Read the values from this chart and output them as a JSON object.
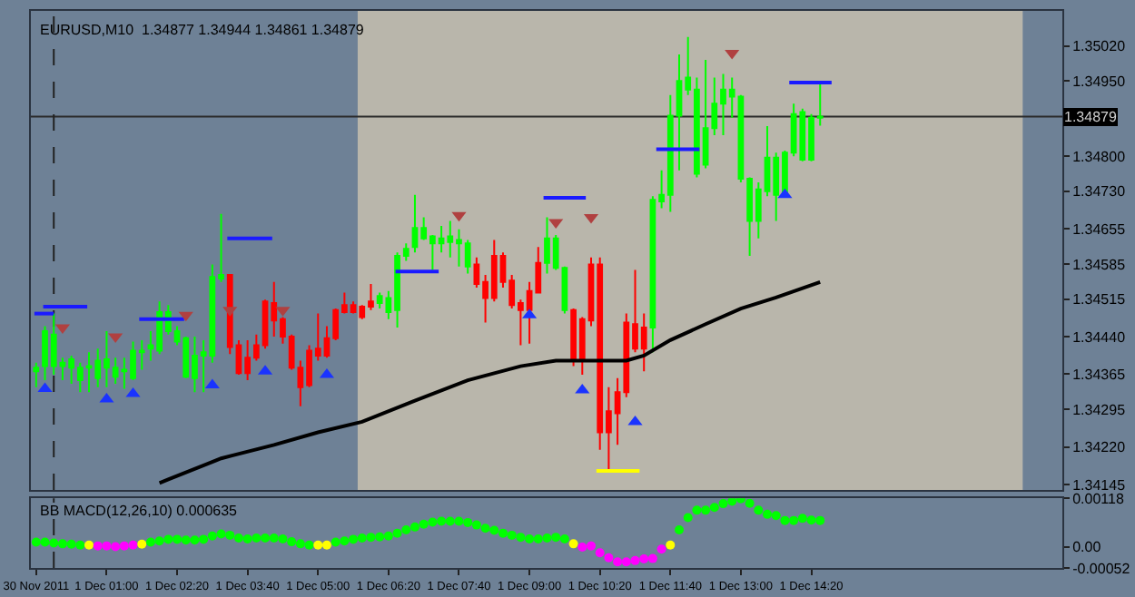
{
  "chart_data": [
    {
      "type": "candlestick",
      "title": "EURUSD,M10  1.34877 1.34944 1.34861 1.34879",
      "x": [
        "2011-11-30T23:40",
        "2011-11-30T23:50",
        "2011-12-01T00:00",
        "2011-12-01T00:10",
        "2011-12-01T00:20",
        "2011-12-01T00:30",
        "2011-12-01T00:40",
        "2011-12-01T00:50",
        "2011-12-01T01:00",
        "2011-12-01T01:10",
        "2011-12-01T01:20",
        "2011-12-01T01:30",
        "2011-12-01T01:40",
        "2011-12-01T01:50",
        "2011-12-01T02:00",
        "2011-12-01T02:10",
        "2011-12-01T02:20",
        "2011-12-01T02:30",
        "2011-12-01T02:40",
        "2011-12-01T02:50",
        "2011-12-01T03:00",
        "2011-12-01T03:10",
        "2011-12-01T03:20",
        "2011-12-01T03:30",
        "2011-12-01T03:40",
        "2011-12-01T03:50",
        "2011-12-01T04:00",
        "2011-12-01T04:10",
        "2011-12-01T04:20",
        "2011-12-01T04:30",
        "2011-12-01T04:40",
        "2011-12-01T04:50",
        "2011-12-01T05:00",
        "2011-12-01T05:10",
        "2011-12-01T05:20",
        "2011-12-01T05:30",
        "2011-12-01T05:40",
        "2011-12-01T05:50",
        "2011-12-01T06:00",
        "2011-12-01T06:10",
        "2011-12-01T06:20",
        "2011-12-01T06:30",
        "2011-12-01T06:40",
        "2011-12-01T06:50",
        "2011-12-01T07:00",
        "2011-12-01T07:10",
        "2011-12-01T07:20",
        "2011-12-01T07:30",
        "2011-12-01T07:40",
        "2011-12-01T07:50",
        "2011-12-01T08:00",
        "2011-12-01T08:10",
        "2011-12-01T08:20",
        "2011-12-01T08:30",
        "2011-12-01T08:40",
        "2011-12-01T08:50",
        "2011-12-01T09:00",
        "2011-12-01T09:10",
        "2011-12-01T09:20",
        "2011-12-01T09:30",
        "2011-12-01T09:40",
        "2011-12-01T09:50",
        "2011-12-01T10:00",
        "2011-12-01T10:10",
        "2011-12-01T10:20",
        "2011-12-01T10:30",
        "2011-12-01T10:40",
        "2011-12-01T10:50",
        "2011-12-01T11:00",
        "2011-12-01T11:10",
        "2011-12-01T11:20",
        "2011-12-01T11:30",
        "2011-12-01T11:40",
        "2011-12-01T11:50",
        "2011-12-01T12:00",
        "2011-12-01T12:10",
        "2011-12-01T12:20",
        "2011-12-01T12:30",
        "2011-12-01T12:40",
        "2011-12-01T12:50",
        "2011-12-01T13:00",
        "2011-12-01T13:10",
        "2011-12-01T13:20",
        "2011-12-01T13:30",
        "2011-12-01T13:40",
        "2011-12-01T13:50",
        "2011-12-01T14:00",
        "2011-12-01T14:10",
        "2011-12-01T14:20",
        "2011-12-01T14:30"
      ],
      "ohlc": [
        [
          1.34371,
          1.34388,
          1.34339,
          1.34378
        ],
        [
          1.34381,
          1.34461,
          1.34353,
          1.34451
        ],
        [
          1.34381,
          1.34486,
          1.34364,
          1.34444
        ],
        [
          1.34381,
          1.34398,
          1.34353,
          1.34388
        ],
        [
          1.34378,
          1.34402,
          1.34346,
          1.34395
        ],
        [
          1.34353,
          1.34388,
          1.34329,
          1.34378
        ],
        [
          1.34378,
          1.34409,
          1.34329,
          1.34381
        ],
        [
          1.34357,
          1.34416,
          1.34339,
          1.34392
        ],
        [
          1.34378,
          1.34451,
          1.34339,
          1.34395
        ],
        [
          1.3436,
          1.34398,
          1.34346,
          1.34378
        ],
        [
          1.34371,
          1.34398,
          1.34336,
          1.34374
        ],
        [
          1.34357,
          1.3443,
          1.34353,
          1.34412
        ],
        [
          1.34409,
          1.34433,
          1.34374,
          1.34412
        ],
        [
          1.34416,
          1.34451,
          1.34392,
          1.34423
        ],
        [
          1.34412,
          1.3451,
          1.34405,
          1.34489
        ],
        [
          1.34451,
          1.34503,
          1.34444,
          1.34489
        ],
        [
          1.3443,
          1.34461,
          1.34423,
          1.34451
        ],
        [
          1.3436,
          1.3444,
          1.34357,
          1.34437
        ],
        [
          1.34357,
          1.3444,
          1.34329,
          1.34402
        ],
        [
          1.34402,
          1.34433,
          1.34329,
          1.34409
        ],
        [
          1.34402,
          1.34584,
          1.34388,
          1.34559
        ],
        [
          1.34556,
          1.34685,
          1.34549,
          1.34563
        ],
        [
          1.34563,
          1.34563,
          1.34405,
          1.34419
        ],
        [
          1.34423,
          1.34433,
          1.34364,
          1.34367
        ],
        [
          1.34398,
          1.34433,
          1.34353,
          1.34367
        ],
        [
          1.34423,
          1.34444,
          1.34392,
          1.34398
        ],
        [
          1.3451,
          1.34514,
          1.34416,
          1.34423
        ],
        [
          1.34507,
          1.34549,
          1.3444,
          1.34472
        ],
        [
          1.34475,
          1.34479,
          1.34426,
          1.3444
        ],
        [
          1.3444,
          1.34444,
          1.34374,
          1.34378
        ],
        [
          1.34378,
          1.34392,
          1.34301,
          1.34339
        ],
        [
          1.34412,
          1.34423,
          1.34339,
          1.34343
        ],
        [
          1.34416,
          1.34486,
          1.34392,
          1.34402
        ],
        [
          1.34437,
          1.34461,
          1.34398,
          1.34402
        ],
        [
          1.34493,
          1.34496,
          1.34433,
          1.34437
        ],
        [
          1.34503,
          1.34528,
          1.34486,
          1.34489
        ],
        [
          1.34503,
          1.3451,
          1.34486,
          1.34489
        ],
        [
          1.345,
          1.34503,
          1.34475,
          1.34479
        ],
        [
          1.3451,
          1.34545,
          1.34493,
          1.345
        ],
        [
          1.34507,
          1.34528,
          1.34496,
          1.34521
        ],
        [
          1.34489,
          1.34531,
          1.34475,
          1.34517
        ],
        [
          1.34493,
          1.34608,
          1.34458,
          1.34601
        ],
        [
          1.34601,
          1.34626,
          1.34591,
          1.34615
        ],
        [
          1.34619,
          1.34723,
          1.34608,
          1.34657
        ],
        [
          1.34636,
          1.34678,
          1.34633,
          1.34657
        ],
        [
          1.34626,
          1.34643,
          1.34573,
          1.3464
        ],
        [
          1.34626,
          1.34661,
          1.34608,
          1.34636
        ],
        [
          1.34629,
          1.34671,
          1.34598,
          1.3464
        ],
        [
          1.34626,
          1.34654,
          1.3458,
          1.34633
        ],
        [
          1.3458,
          1.34633,
          1.34566,
          1.34626
        ],
        [
          1.34584,
          1.34598,
          1.34538,
          1.34545
        ],
        [
          1.34549,
          1.34563,
          1.34468,
          1.34517
        ],
        [
          1.34601,
          1.34633,
          1.3451,
          1.34517
        ],
        [
          1.34601,
          1.34608,
          1.34538,
          1.34549
        ],
        [
          1.34552,
          1.34563,
          1.34496,
          1.34503
        ],
        [
          1.34507,
          1.34514,
          1.34423,
          1.34493
        ],
        [
          1.34531,
          1.34549,
          1.34426,
          1.34493
        ],
        [
          1.34587,
          1.34619,
          1.34528,
          1.34528
        ],
        [
          1.34587,
          1.34678,
          1.34566,
          1.34636
        ],
        [
          1.34577,
          1.34643,
          1.34573,
          1.34636
        ],
        [
          1.34493,
          1.3458,
          1.34486,
          1.34577
        ],
        [
          1.34493,
          1.34496,
          1.34381,
          1.34392
        ],
        [
          1.34475,
          1.34479,
          1.34364,
          1.34392
        ],
        [
          1.34584,
          1.34598,
          1.34461,
          1.34472
        ],
        [
          1.34584,
          1.34598,
          1.34214,
          1.34249
        ],
        [
          1.34291,
          1.34339,
          1.34172,
          1.34249
        ],
        [
          1.34329,
          1.34357,
          1.34224,
          1.34287
        ],
        [
          1.34468,
          1.34486,
          1.34319,
          1.34329
        ],
        [
          1.34465,
          1.34573,
          1.34409,
          1.34416
        ],
        [
          1.34458,
          1.34486,
          1.34371,
          1.34416
        ],
        [
          1.34458,
          1.3472,
          1.34409,
          1.34713
        ],
        [
          1.3471,
          1.34772,
          1.34696,
          1.34723
        ],
        [
          1.34723,
          1.34922,
          1.34689,
          1.34881
        ],
        [
          1.34881,
          1.35003,
          1.34772,
          1.3495
        ],
        [
          1.34933,
          1.35038,
          1.34922,
          1.34957
        ],
        [
          1.34765,
          1.34957,
          1.34758,
          1.34933
        ],
        [
          1.34783,
          1.34992,
          1.34776,
          1.34856
        ],
        [
          1.34856,
          1.34957,
          1.34842,
          1.34905
        ],
        [
          1.34905,
          1.34964,
          1.34842,
          1.34933
        ],
        [
          1.34919,
          1.34957,
          1.34877,
          1.34933
        ],
        [
          1.34755,
          1.34922,
          1.34748,
          1.34919
        ],
        [
          1.34671,
          1.34758,
          1.34601,
          1.34755
        ],
        [
          1.34671,
          1.34748,
          1.34636,
          1.34734
        ],
        [
          1.3473,
          1.3486,
          1.3472,
          1.34797
        ],
        [
          1.34723,
          1.34807,
          1.34671,
          1.34797
        ],
        [
          1.34727,
          1.34811,
          1.34723,
          1.34807
        ],
        [
          1.34807,
          1.34905,
          1.348,
          1.34884
        ],
        [
          1.34793,
          1.34895,
          1.3479,
          1.34888
        ],
        [
          1.34793,
          1.34884,
          1.3479,
          1.34877
        ],
        [
          1.34877,
          1.34944,
          1.34861,
          1.34879
        ]
      ],
      "colors": [
        "#00ff00",
        "#00ff00",
        "#00ff00",
        "#00ff00",
        "#00ff00",
        "#00ff00",
        "#00ff00",
        "#00ff00",
        "#00ff00",
        "#00ff00",
        "#00ff00",
        "#00ff00",
        "#00ff00",
        "#00ff00",
        "#00ff00",
        "#00ff00",
        "#00ff00",
        "#00ff00",
        "#00ff00",
        "#00ff00",
        "#00ff00",
        "#00ff00",
        "#ff0000",
        "#ff0000",
        "#ff0000",
        "#ff0000",
        "#ff0000",
        "#ff0000",
        "#ff0000",
        "#ff0000",
        "#ff0000",
        "#ff0000",
        "#ff0000",
        "#ff0000",
        "#ff0000",
        "#ff0000",
        "#ff0000",
        "#ff0000",
        "#ff0000",
        "#00ff00",
        "#00ff00",
        "#00ff00",
        "#00ff00",
        "#00ff00",
        "#00ff00",
        "#00ff00",
        "#00ff00",
        "#00ff00",
        "#00ff00",
        "#00ff00",
        "#ff0000",
        "#ff0000",
        "#ff0000",
        "#ff0000",
        "#ff0000",
        "#ff0000",
        "#ff0000",
        "#ff0000",
        "#00ff00",
        "#00ff00",
        "#00ff00",
        "#ff0000",
        "#ff0000",
        "#ff0000",
        "#ff0000",
        "#ff0000",
        "#ff0000",
        "#ff0000",
        "#ff0000",
        "#ff0000",
        "#00ff00",
        "#00ff00",
        "#00ff00",
        "#00ff00",
        "#00ff00",
        "#00ff00",
        "#00ff00",
        "#00ff00",
        "#00ff00",
        "#00ff00",
        "#00ff00",
        "#00ff00",
        "#00ff00",
        "#00ff00",
        "#00ff00",
        "#00ff00",
        "#00ff00",
        "#00ff00",
        "#00ff00",
        "#00ff00"
      ],
      "series": [
        {
          "type": "line",
          "color": "#000000",
          "x": [
            "2011-12-01T02:00",
            "2011-12-01T02:10",
            "2011-12-01T03:10",
            "2011-12-01T04:10",
            "2011-12-01T05:00",
            "2011-12-01T05:50",
            "2011-12-01T06:50",
            "2011-12-01T07:50",
            "2011-12-01T08:50",
            "2011-12-01T09:30",
            "2011-12-01T10:20",
            "2011-12-01T10:50",
            "2011-12-01T11:10",
            "2011-12-01T11:40",
            "2011-12-01T12:20",
            "2011-12-01T13:00",
            "2011-12-01T13:40",
            "2011-12-01T14:30"
          ],
          "values": [
            1.34148,
            1.34155,
            1.34197,
            1.34224,
            1.34249,
            1.3427,
            1.34312,
            1.34353,
            1.34381,
            1.34392,
            1.34392,
            1.34392,
            1.34402,
            1.34433,
            1.34465,
            1.34496,
            1.34518,
            1.34549
          ]
        },
        {
          "type": "line",
          "color": "#1a1aff",
          "x": [
            "2011-11-30T23:38",
            "2011-12-01T00:00",
            null,
            "2011-11-30T23:48",
            "2011-12-01T00:38",
            null,
            "2011-12-01T01:37",
            "2011-12-01T02:28",
            null,
            "2011-12-01T03:17",
            "2011-12-01T04:08",
            null,
            "2011-12-01T06:28",
            "2011-12-01T07:17",
            null,
            "2011-12-01T09:16",
            "2011-12-01T10:04",
            null,
            "2011-12-01T11:24",
            "2011-12-01T12:13",
            null,
            "2011-12-01T13:55",
            "2011-12-01T14:43"
          ],
          "values": [
            1.34486,
            1.34486,
            null,
            1.345,
            1.345,
            null,
            1.34475,
            1.34475,
            null,
            1.34636,
            1.34636,
            null,
            1.3457,
            1.3457,
            null,
            1.34717,
            1.34717,
            null,
            1.34814,
            1.34814,
            null,
            1.34947,
            1.34947
          ]
        },
        {
          "type": "line",
          "color": "#ffff00",
          "x": [
            "2011-12-01T10:16",
            "2011-12-01T11:05"
          ],
          "values": [
            1.34172,
            1.34172
          ]
        },
        {
          "type": "scatter",
          "marker": "triangle-up",
          "color": "#1a33ff",
          "x": [
            "2011-11-30T23:50",
            "2011-12-01T01:00",
            "2011-12-01T01:30",
            "2011-12-01T03:00",
            "2011-12-01T04:00",
            "2011-12-01T05:10",
            "2011-12-01T09:00",
            "2011-12-01T10:00",
            "2011-12-01T11:00",
            "2011-12-01T13:50"
          ],
          "values": [
            1.34336,
            1.34315,
            1.34326,
            1.34343,
            1.34371,
            1.34364,
            1.34483,
            1.34333,
            1.3427,
            1.34723
          ]
        },
        {
          "type": "scatter",
          "marker": "triangle-down",
          "color": "#b04040",
          "x": [
            "2011-12-01T00:10",
            "2011-12-01T01:10",
            "2011-12-01T02:30",
            "2011-12-01T03:20",
            "2011-12-01T04:20",
            "2011-12-01T07:40",
            "2011-12-01T09:30",
            "2011-12-01T10:10",
            "2011-12-01T12:50"
          ],
          "values": [
            1.34458,
            1.3444,
            1.34483,
            1.34493,
            1.34493,
            1.34682,
            1.34668,
            1.34678,
            1.35006
          ]
        }
      ],
      "xlim": [
        "2011-11-30T23:34",
        "2011-12-01T19:05"
      ],
      "ylim": [
        1.34134,
        1.3509
      ],
      "yticks": [
        {
          "value": 1.3502,
          "label": "1.35020"
        },
        {
          "value": 1.3495,
          "label": "1.34950"
        },
        {
          "value": 1.348,
          "label": "1.34800"
        },
        {
          "value": 1.3473,
          "label": "1.34730"
        },
        {
          "value": 1.34655,
          "label": "1.34655"
        },
        {
          "value": 1.34585,
          "label": "1.34585"
        },
        {
          "value": 1.34515,
          "label": "1.34515"
        },
        {
          "value": 1.3444,
          "label": "1.34440"
        },
        {
          "value": 1.34365,
          "label": "1.34365"
        },
        {
          "value": 1.34295,
          "label": "1.34295"
        },
        {
          "value": 1.3422,
          "label": "1.34220"
        },
        {
          "value": 1.34145,
          "label": "1.34145"
        }
      ],
      "ref_lines": [
        {
          "axis": "y",
          "value": 1.34879,
          "label": "1.34879",
          "color": "#2a2a2a"
        },
        {
          "axis": "x",
          "value": "2011-12-01T00:00",
          "line_style": "dashed",
          "color": "#222222"
        }
      ],
      "bands": [
        {
          "axis": "x",
          "from": "2011-12-01T05:45",
          "to": "2011-12-01T18:20",
          "color": "#b9b6ab"
        }
      ],
      "tick_labels": "y",
      "grid": false
    },
    {
      "type": "scatter",
      "title": "BB MACD(12,26,10) 0.000635",
      "marker": "circle",
      "x": [
        "2011-11-30T23:40",
        "2011-11-30T23:50",
        "2011-12-01T00:00",
        "2011-12-01T00:10",
        "2011-12-01T00:20",
        "2011-12-01T00:30",
        "2011-12-01T00:40",
        "2011-12-01T00:50",
        "2011-12-01T01:00",
        "2011-12-01T01:10",
        "2011-12-01T01:20",
        "2011-12-01T01:30",
        "2011-12-01T01:40",
        "2011-12-01T01:50",
        "2011-12-01T02:00",
        "2011-12-01T02:10",
        "2011-12-01T02:20",
        "2011-12-01T02:30",
        "2011-12-01T02:40",
        "2011-12-01T02:50",
        "2011-12-01T03:00",
        "2011-12-01T03:10",
        "2011-12-01T03:20",
        "2011-12-01T03:30",
        "2011-12-01T03:40",
        "2011-12-01T03:50",
        "2011-12-01T04:00",
        "2011-12-01T04:10",
        "2011-12-01T04:20",
        "2011-12-01T04:30",
        "2011-12-01T04:40",
        "2011-12-01T04:50",
        "2011-12-01T05:00",
        "2011-12-01T05:10",
        "2011-12-01T05:20",
        "2011-12-01T05:30",
        "2011-12-01T05:40",
        "2011-12-01T05:50",
        "2011-12-01T06:00",
        "2011-12-01T06:10",
        "2011-12-01T06:20",
        "2011-12-01T06:30",
        "2011-12-01T06:40",
        "2011-12-01T06:50",
        "2011-12-01T07:00",
        "2011-12-01T07:10",
        "2011-12-01T07:20",
        "2011-12-01T07:30",
        "2011-12-01T07:40",
        "2011-12-01T07:50",
        "2011-12-01T08:00",
        "2011-12-01T08:10",
        "2011-12-01T08:20",
        "2011-12-01T08:30",
        "2011-12-01T08:40",
        "2011-12-01T08:50",
        "2011-12-01T09:00",
        "2011-12-01T09:10",
        "2011-12-01T09:20",
        "2011-12-01T09:30",
        "2011-12-01T09:40",
        "2011-12-01T09:50",
        "2011-12-01T10:00",
        "2011-12-01T10:10",
        "2011-12-01T10:20",
        "2011-12-01T10:30",
        "2011-12-01T10:40",
        "2011-12-01T10:50",
        "2011-12-01T11:00",
        "2011-12-01T11:10",
        "2011-12-01T11:20",
        "2011-12-01T11:30",
        "2011-12-01T11:40",
        "2011-12-01T11:50",
        "2011-12-01T12:00",
        "2011-12-01T12:10",
        "2011-12-01T12:20",
        "2011-12-01T12:30",
        "2011-12-01T12:40",
        "2011-12-01T12:50",
        "2011-12-01T13:00",
        "2011-12-01T13:10",
        "2011-12-01T13:20",
        "2011-12-01T13:30",
        "2011-12-01T13:40",
        "2011-12-01T13:50",
        "2011-12-01T14:00",
        "2011-12-01T14:10",
        "2011-12-01T14:20",
        "2011-12-01T14:30"
      ],
      "values": [
        0.00011,
        0.00011,
        9e-05,
        7e-05,
        6e-05,
        4e-05,
        4e-05,
        2e-05,
        2e-05,
        0.0,
        2e-05,
        4e-05,
        6e-05,
        0.00011,
        0.00014,
        0.00018,
        0.00018,
        0.00016,
        0.00016,
        0.00018,
        0.00026,
        0.00031,
        0.00028,
        0.00021,
        0.00019,
        0.00021,
        0.00021,
        0.00021,
        0.00019,
        0.00012,
        7e-05,
        4e-05,
        4e-05,
        4e-05,
        0.00011,
        0.00014,
        0.00018,
        0.00021,
        0.00023,
        0.00024,
        0.00026,
        0.00033,
        0.00041,
        0.00048,
        0.00055,
        0.0006,
        0.00062,
        0.00062,
        0.00062,
        0.00059,
        0.00053,
        0.00045,
        0.0004,
        0.00033,
        0.00028,
        0.00023,
        0.00019,
        0.00019,
        0.00021,
        0.00023,
        0.00019,
        7e-05,
        -1e-05,
        2e-05,
        -0.00015,
        -0.00027,
        -0.00037,
        -0.00037,
        -0.00034,
        -0.0003,
        -0.00029,
        -6e-05,
        4e-05,
        0.00041,
        0.00071,
        0.00089,
        0.00089,
        0.00096,
        0.00105,
        0.00111,
        0.00117,
        0.00106,
        0.00089,
        0.00079,
        0.00076,
        0.00064,
        0.00064,
        0.00069,
        0.00065,
        0.00064
      ],
      "colors": [
        "#00ff00",
        "#00ff00",
        "#00ff00",
        "#00ff00",
        "#00ff00",
        "#00ff00",
        "#ffff00",
        "#ff00ff",
        "#ff00ff",
        "#ff00ff",
        "#ff00ff",
        "#ff00ff",
        "#ffff00",
        "#00ff00",
        "#00ff00",
        "#00ff00",
        "#00ff00",
        "#00ff00",
        "#00ff00",
        "#00ff00",
        "#00ff00",
        "#00ff00",
        "#00ff00",
        "#00ff00",
        "#00ff00",
        "#00ff00",
        "#00ff00",
        "#00ff00",
        "#00ff00",
        "#00ff00",
        "#00ff00",
        "#00ff00",
        "#ffff00",
        "#ffff00",
        "#00ff00",
        "#00ff00",
        "#00ff00",
        "#00ff00",
        "#00ff00",
        "#00ff00",
        "#00ff00",
        "#00ff00",
        "#00ff00",
        "#00ff00",
        "#00ff00",
        "#00ff00",
        "#00ff00",
        "#00ff00",
        "#00ff00",
        "#00ff00",
        "#00ff00",
        "#00ff00",
        "#00ff00",
        "#00ff00",
        "#00ff00",
        "#00ff00",
        "#00ff00",
        "#00ff00",
        "#00ff00",
        "#00ff00",
        "#00ff00",
        "#ffff00",
        "#ff00ff",
        "#ff00ff",
        "#ff00ff",
        "#ff00ff",
        "#ff00ff",
        "#ff00ff",
        "#ff00ff",
        "#ff00ff",
        "#ff00ff",
        "#ff00ff",
        "#ffff00",
        "#00ff00",
        "#00ff00",
        "#00ff00",
        "#00ff00",
        "#00ff00",
        "#00ff00",
        "#00ff00",
        "#00ff00",
        "#00ff00",
        "#00ff00",
        "#00ff00",
        "#00ff00",
        "#00ff00",
        "#00ff00",
        "#00ff00",
        "#00ff00",
        "#00ff00"
      ],
      "xlim": [
        "2011-11-30T23:34",
        "2011-12-01T19:05"
      ],
      "xticks": [
        {
          "value": "2011-11-30T23:40",
          "label": "30 Nov 2011"
        },
        {
          "value": "2011-12-01T01:00",
          "label": "1 Dec 01:00"
        },
        {
          "value": "2011-12-01T02:20",
          "label": "1 Dec 02:20"
        },
        {
          "value": "2011-12-01T03:40",
          "label": "1 Dec 03:40"
        },
        {
          "value": "2011-12-01T05:00",
          "label": "1 Dec 05:00"
        },
        {
          "value": "2011-12-01T06:20",
          "label": "1 Dec 06:20"
        },
        {
          "value": "2011-12-01T07:40",
          "label": "1 Dec 07:40"
        },
        {
          "value": "2011-12-01T09:00",
          "label": "1 Dec 09:00"
        },
        {
          "value": "2011-12-01T10:20",
          "label": "1 Dec 10:20"
        },
        {
          "value": "2011-12-01T11:40",
          "label": "1 Dec 11:40"
        },
        {
          "value": "2011-12-01T13:00",
          "label": "1 Dec 13:00"
        },
        {
          "value": "2011-12-01T14:20",
          "label": "1 Dec 14:20"
        }
      ],
      "ylim": [
        -0.00052,
        0.00118
      ],
      "yticks": [
        {
          "value": 0.00118,
          "label": "0.00118"
        },
        {
          "value": 0.0,
          "label": "0.00"
        },
        {
          "value": -0.00052,
          "label": "-0.00052"
        }
      ],
      "ref_lines": [
        {
          "axis": "x",
          "value": "2011-12-01T00:00",
          "line_style": "dashed",
          "color": "#222222"
        }
      ],
      "grid": false
    }
  ]
}
